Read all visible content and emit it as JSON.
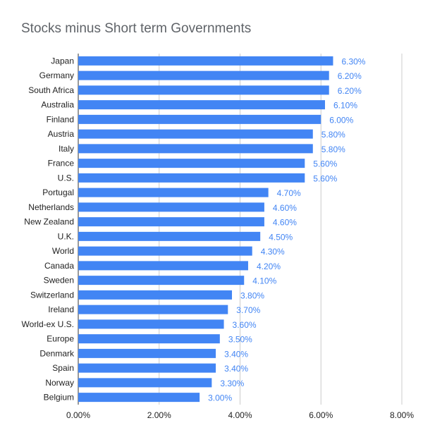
{
  "chart_data": {
    "type": "bar",
    "orientation": "horizontal",
    "title": "Stocks minus Short term Governments",
    "xlabel": "",
    "ylabel": "",
    "xlim": [
      0,
      8
    ],
    "ticks": [
      {
        "value": 0,
        "label": "0.00%"
      },
      {
        "value": 2,
        "label": "2.00%"
      },
      {
        "value": 4,
        "label": "4.00%"
      },
      {
        "value": 6,
        "label": "6.00%"
      },
      {
        "value": 8,
        "label": "8.00%"
      }
    ],
    "grid": true,
    "legend": "none",
    "bar_color": "#4285f4",
    "label_color": "#4285f4",
    "grid_color": "#cccccc",
    "categories": [
      "Japan",
      "Germany",
      "South Africa",
      "Australia",
      "Finland",
      "Austria",
      "Italy",
      "France",
      "U.S.",
      "Portugal",
      "Netherlands",
      "New Zealand",
      "U.K.",
      "World",
      "Canada",
      "Sweden",
      "Switzerland",
      "Ireland",
      "World-ex U.S.",
      "Europe",
      "Denmark",
      "Spain",
      "Norway",
      "Belgium"
    ],
    "values": [
      6.3,
      6.2,
      6.2,
      6.1,
      6.0,
      5.8,
      5.8,
      5.6,
      5.6,
      4.7,
      4.6,
      4.6,
      4.5,
      4.3,
      4.2,
      4.1,
      3.8,
      3.7,
      3.6,
      3.5,
      3.4,
      3.4,
      3.3,
      3.0
    ],
    "data_labels": [
      "6.30%",
      "6.20%",
      "6.20%",
      "6.10%",
      "6.00%",
      "5.80%",
      "5.80%",
      "5.60%",
      "5.60%",
      "4.70%",
      "4.60%",
      "4.60%",
      "4.50%",
      "4.30%",
      "4.20%",
      "4.10%",
      "3.80%",
      "3.70%",
      "3.60%",
      "3.50%",
      "3.40%",
      "3.40%",
      "3.30%",
      "3.00%"
    ]
  }
}
